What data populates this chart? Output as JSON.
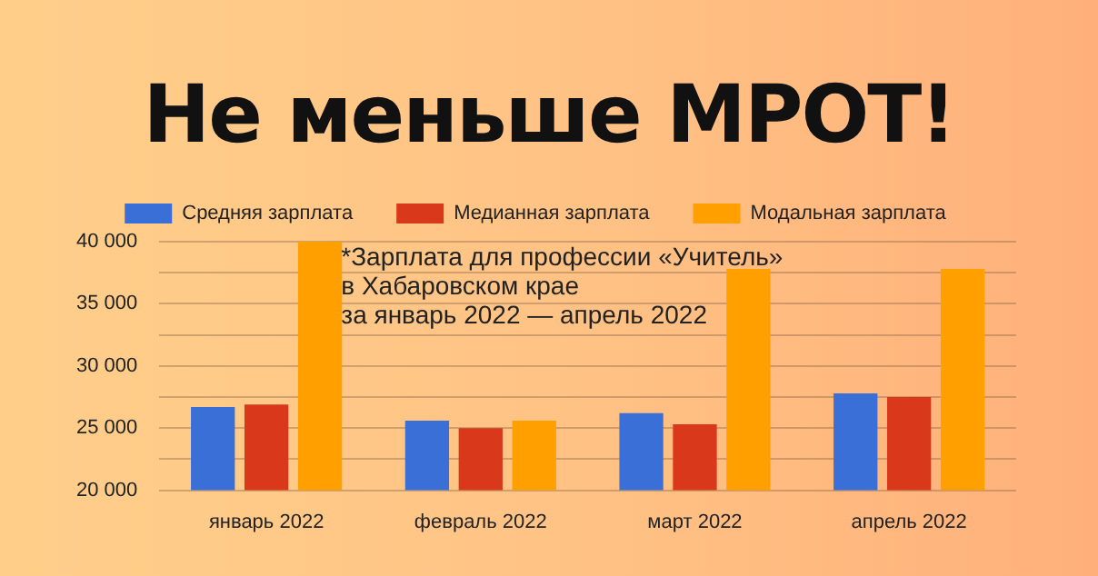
{
  "chart_data": {
    "type": "bar",
    "title": "Не меньше МРОТ!",
    "categories": [
      "январь 2022",
      "февраль 2022",
      "март 2022",
      "апрель 2022"
    ],
    "series": [
      {
        "name": "Средняя зарплата",
        "color": "#3a6fd8",
        "values": [
          26700,
          25600,
          26200,
          27800
        ]
      },
      {
        "name": "Медианная зарплата",
        "color": "#d9391a",
        "values": [
          26900,
          25000,
          25300,
          27500
        ]
      },
      {
        "name": "Модальная зарплата",
        "color": "#ffa000",
        "values": [
          40000,
          25600,
          37800,
          37800
        ]
      }
    ],
    "ylim": [
      20000,
      40000
    ],
    "yticks": [
      {
        "value": 20000,
        "label": "20 000"
      },
      {
        "value": 22500,
        "label": null
      },
      {
        "value": 25000,
        "label": "25 000"
      },
      {
        "value": 27500,
        "label": null
      },
      {
        "value": 30000,
        "label": "30 000"
      },
      {
        "value": 32500,
        "label": null
      },
      {
        "value": 35000,
        "label": "35 000"
      },
      {
        "value": 37500,
        "label": null
      },
      {
        "value": 40000,
        "label": "40 000"
      }
    ],
    "grid": "y",
    "legend": "top",
    "annotations": [
      "*Зарплата для профессии «Учитель»\nв Хабаровском крае\nза январь 2022 — апрель 2022"
    ]
  }
}
